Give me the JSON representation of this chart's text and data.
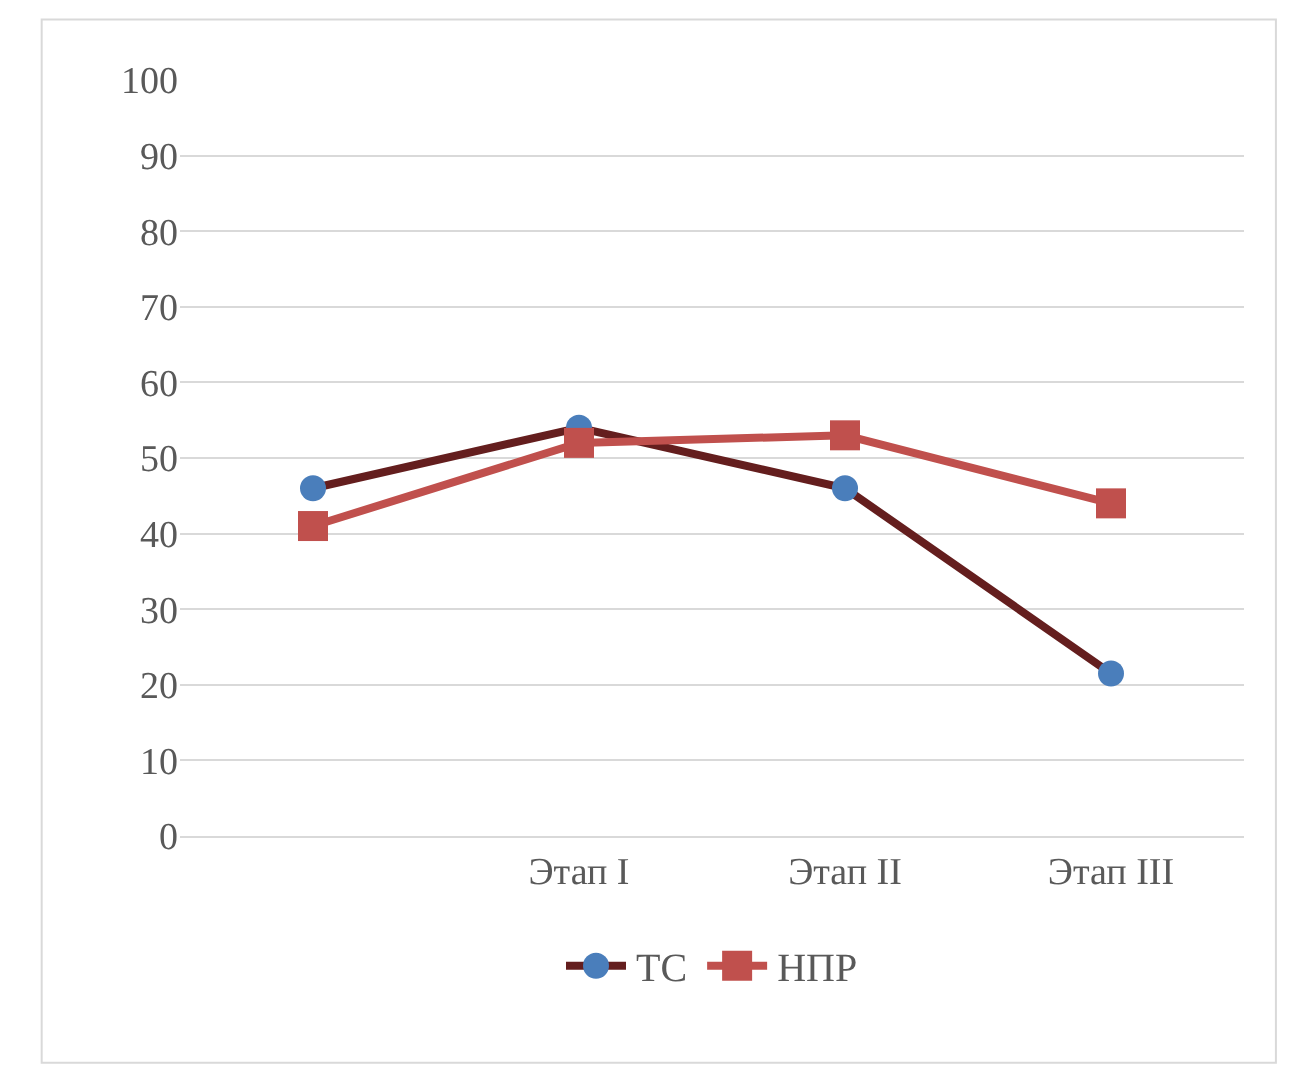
{
  "chart_data": {
    "type": "line",
    "categories": [
      null,
      "Этап I",
      "Этап II",
      "Этап III"
    ],
    "series": [
      {
        "name": "ТС",
        "color": "#641e1e",
        "colors": [
          "#4a7ebb",
          "#4a7ebb",
          "#4a7ebb",
          "#4a7ebb"
        ],
        "marker": "circle",
        "values": [
          46,
          54,
          46,
          21.5
        ]
      },
      {
        "name": "НПР",
        "color": "#c0504d",
        "marker": "square",
        "values": [
          41,
          52,
          53,
          44
        ]
      }
    ],
    "ylim": [
      0,
      100
    ],
    "yticks": [
      0,
      10,
      20,
      30,
      40,
      50,
      60,
      70,
      80,
      90,
      100
    ],
    "grid": "y",
    "legend": "bottom",
    "line_style": "solid"
  }
}
